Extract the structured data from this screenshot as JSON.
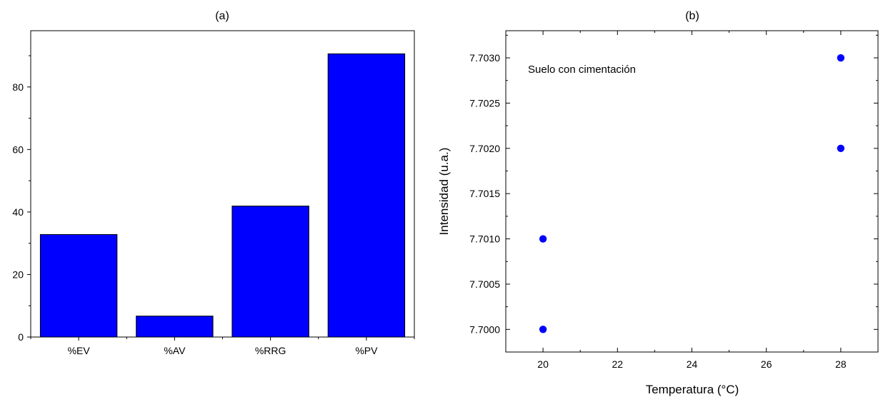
{
  "chart_data": [
    {
      "type": "bar",
      "panel_label": "(a)",
      "categories": [
        "%EV",
        "%AV",
        "%RRG",
        "%PV"
      ],
      "values": [
        32.8,
        6.7,
        41.9,
        90.6
      ],
      "ylim": [
        0,
        98
      ],
      "yticks": [
        0,
        20,
        40,
        60,
        80
      ],
      "bar_color": "#0000ff",
      "xlabel": "",
      "ylabel": ""
    },
    {
      "type": "scatter",
      "panel_label": "(b)",
      "xlabel": "Temperatura (°C)",
      "ylabel": "Intensidad (u.a.)",
      "annotation": "Suelo con cimentación",
      "points": [
        {
          "x": 20,
          "y": 7.7
        },
        {
          "x": 20,
          "y": 7.701
        },
        {
          "x": 28,
          "y": 7.702
        },
        {
          "x": 28,
          "y": 7.703
        }
      ],
      "xlim": [
        19,
        29
      ],
      "ylim": [
        7.69975,
        7.7033
      ],
      "xticks": [
        20,
        22,
        24,
        26,
        28
      ],
      "yticks": [
        7.7,
        7.7005,
        7.701,
        7.7015,
        7.702,
        7.7025,
        7.703
      ],
      "ytick_decimals": 4,
      "point_color": "#0000ff"
    }
  ]
}
